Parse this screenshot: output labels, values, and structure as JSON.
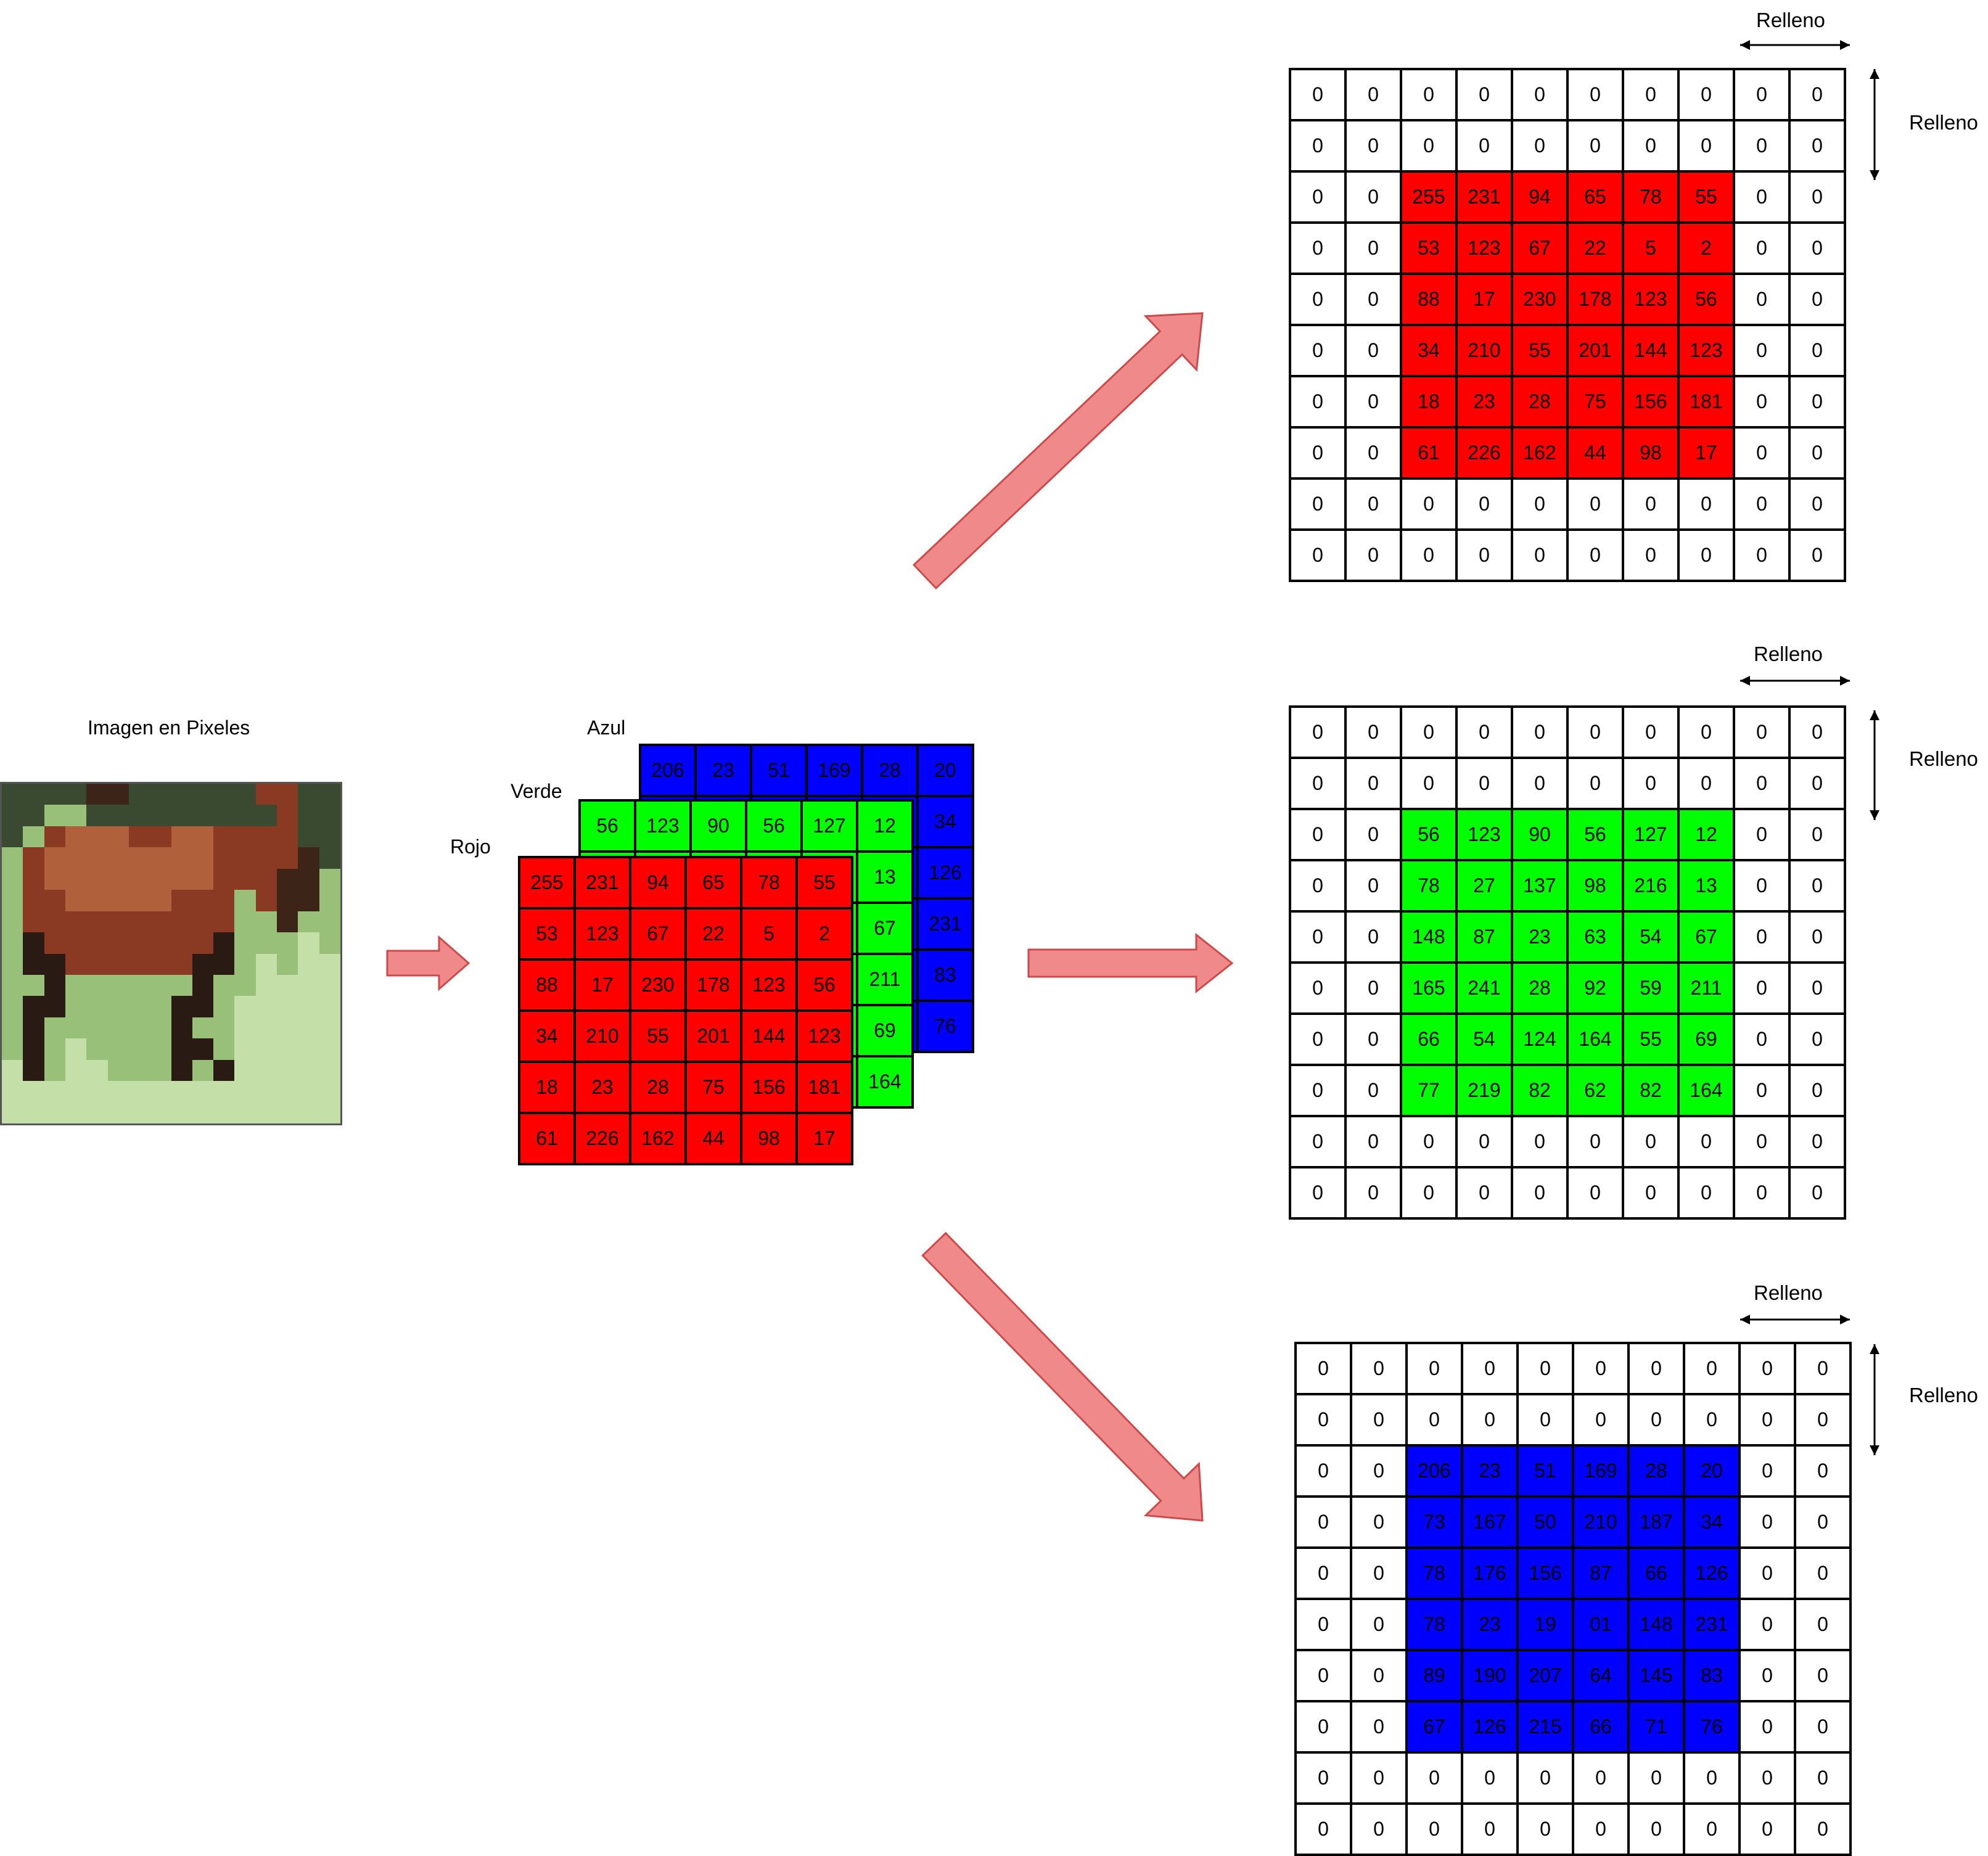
{
  "labels": {
    "image_title": "Imagen en Pixeles",
    "blue_channel": "Azul",
    "green_channel": "Verde",
    "red_channel": "Rojo",
    "padding": "Relleno"
  },
  "colors": {
    "red": "#ff0000",
    "green": "#00ff00",
    "blue": "#0000ff",
    "padding_cell": "#ffffff",
    "arrow_fill": "#f08a8a",
    "arrow_stroke": "#cc4a4a"
  },
  "padding_value": "0",
  "channels": {
    "red": [
      [
        "255",
        "231",
        "94",
        "65",
        "78",
        "55"
      ],
      [
        "53",
        "123",
        "67",
        "22",
        "5",
        "2"
      ],
      [
        "88",
        "17",
        "230",
        "178",
        "123",
        "56"
      ],
      [
        "34",
        "210",
        "55",
        "201",
        "144",
        "123"
      ],
      [
        "18",
        "23",
        "28",
        "75",
        "156",
        "181"
      ],
      [
        "61",
        "226",
        "162",
        "44",
        "98",
        "17"
      ]
    ],
    "green": [
      [
        "56",
        "123",
        "90",
        "56",
        "127",
        "12"
      ],
      [
        "78",
        "27",
        "137",
        "98",
        "216",
        "13"
      ],
      [
        "148",
        "87",
        "23",
        "63",
        "54",
        "67"
      ],
      [
        "165",
        "241",
        "28",
        "92",
        "59",
        "211"
      ],
      [
        "66",
        "54",
        "124",
        "164",
        "55",
        "69"
      ],
      [
        "77",
        "219",
        "82",
        "62",
        "82",
        "164"
      ]
    ],
    "blue": [
      [
        "206",
        "23",
        "51",
        "169",
        "28",
        "20"
      ],
      [
        "73",
        "167",
        "50",
        "210",
        "187",
        "34"
      ],
      [
        "78",
        "176",
        "156",
        "87",
        "66",
        "126"
      ],
      [
        "78",
        "23",
        "19",
        "01",
        "148",
        "231"
      ],
      [
        "89",
        "190",
        "207",
        "64",
        "145",
        "83"
      ],
      [
        "67",
        "126",
        "215",
        "66",
        "71",
        "76"
      ]
    ]
  }
}
